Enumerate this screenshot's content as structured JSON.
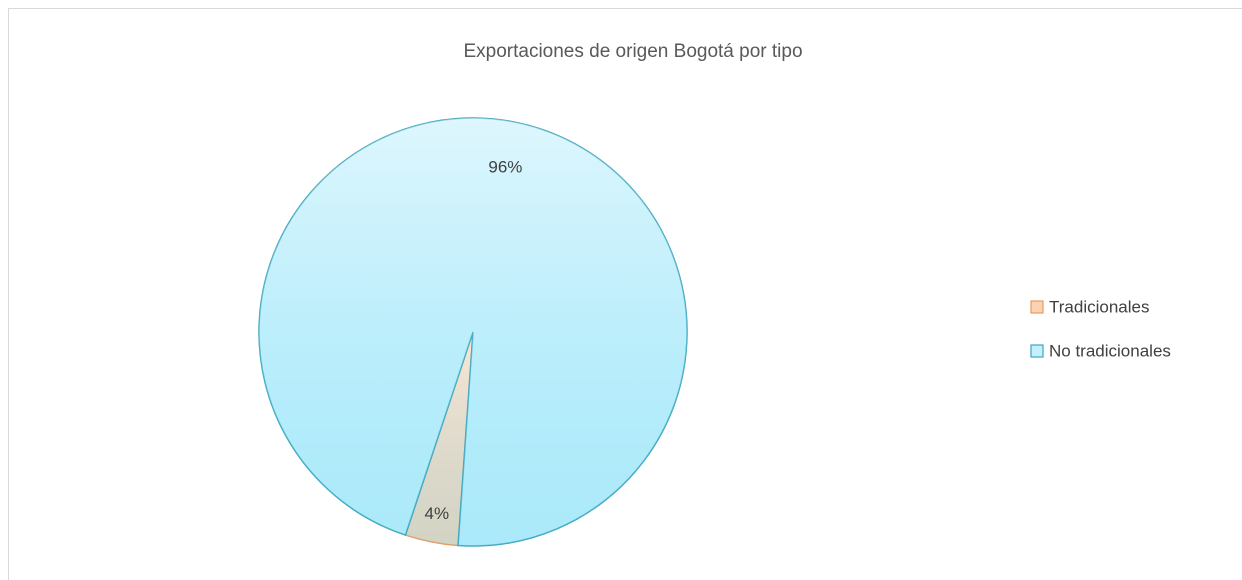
{
  "chart_data": {
    "type": "pie",
    "title": "Exportaciones de origen Bogotá por tipo",
    "categories": [
      "Tradicionales",
      "No tradicionales"
    ],
    "values": [
      4,
      96
    ],
    "value_labels": [
      "4%",
      "96%"
    ],
    "colors": [
      "#fbd3b4",
      "#c4f0fc"
    ],
    "start_angle": 184,
    "legend": "right"
  }
}
